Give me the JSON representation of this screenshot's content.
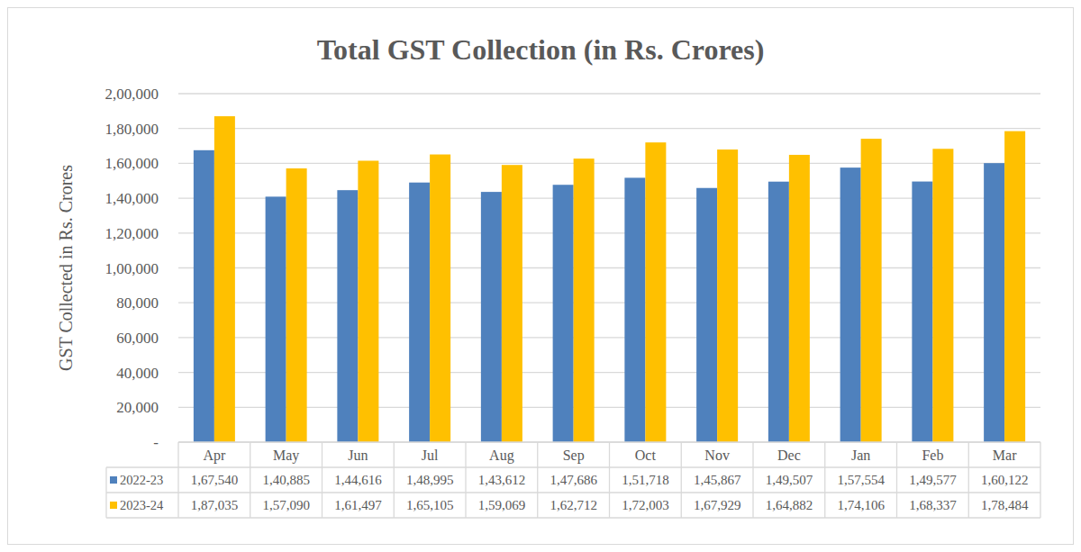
{
  "chart_data": {
    "type": "bar",
    "title": "Total GST Collection (in Rs. Crores)",
    "y_label": "GST Collected in Rs. Crores",
    "categories": [
      "Apr",
      "May",
      "Jun",
      "Jul",
      "Aug",
      "Sep",
      "Oct",
      "Nov",
      "Dec",
      "Jan",
      "Feb",
      "Mar"
    ],
    "series": [
      {
        "name": "2022-23",
        "color": "#4f81bd",
        "values": [
          167540,
          140885,
          144616,
          148995,
          143612,
          147686,
          151718,
          145867,
          149507,
          157554,
          149577,
          160122
        ],
        "value_labels": [
          "1,67,540",
          "1,40,885",
          "1,44,616",
          "1,48,995",
          "1,43,612",
          "1,47,686",
          "1,51,718",
          "1,45,867",
          "1,49,507",
          "1,57,554",
          "1,49,577",
          "1,60,122"
        ]
      },
      {
        "name": "2023-24",
        "color": "#ffc000",
        "values": [
          187035,
          157090,
          161497,
          165105,
          159069,
          162712,
          172003,
          167929,
          164882,
          174106,
          168337,
          178484
        ],
        "value_labels": [
          "1,87,035",
          "1,57,090",
          "1,61,497",
          "1,65,105",
          "1,59,069",
          "1,62,712",
          "1,72,003",
          "1,67,929",
          "1,64,882",
          "1,74,106",
          "1,68,337",
          "1,78,484"
        ]
      }
    ],
    "ylim": [
      0,
      200000
    ],
    "yticks": [
      {
        "value": 0,
        "label": "-"
      },
      {
        "value": 20000,
        "label": "20,000"
      },
      {
        "value": 40000,
        "label": "40,000"
      },
      {
        "value": 60000,
        "label": "60,000"
      },
      {
        "value": 80000,
        "label": "80,000"
      },
      {
        "value": 100000,
        "label": "1,00,000"
      },
      {
        "value": 120000,
        "label": "1,20,000"
      },
      {
        "value": 140000,
        "label": "1,40,000"
      },
      {
        "value": 160000,
        "label": "1,60,000"
      },
      {
        "value": 180000,
        "label": "1,80,000"
      },
      {
        "value": 200000,
        "label": "2,00,000"
      }
    ],
    "grid": true,
    "legend": "bottom"
  }
}
